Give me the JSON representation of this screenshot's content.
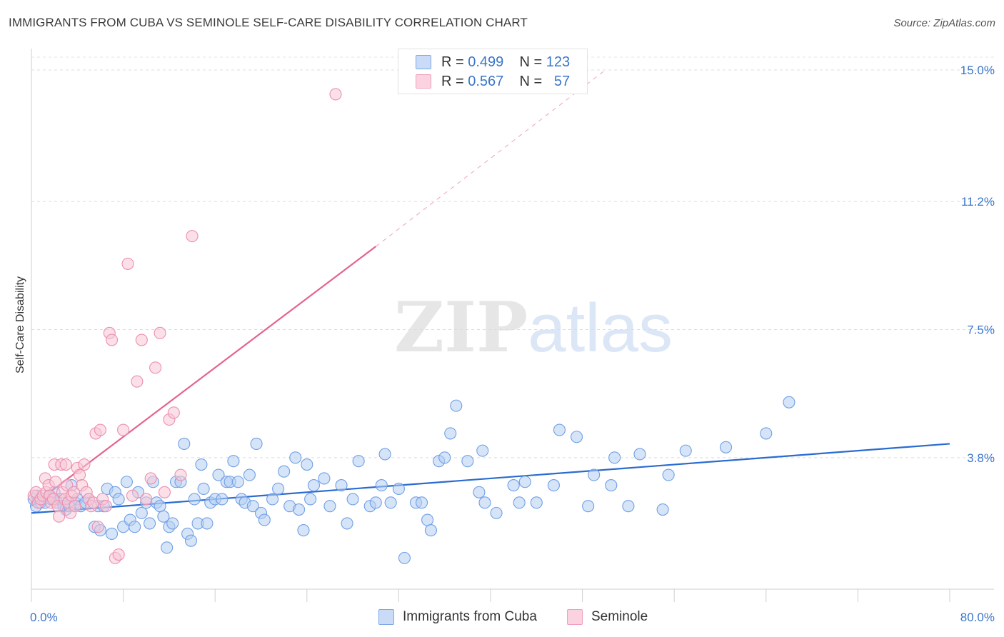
{
  "title": "IMMIGRANTS FROM CUBA VS SEMINOLE SELF-CARE DISABILITY CORRELATION CHART",
  "source": "Source: ZipAtlas.com",
  "watermark": {
    "zip": "ZIP",
    "atlas": "atlas"
  },
  "legend": {
    "rows": [
      {
        "r_label": "R =",
        "r_value": "0.499",
        "n_label": "N =",
        "n_value": "123",
        "color": "#9bbcf0"
      },
      {
        "r_label": "R =",
        "r_value": "0.567",
        "n_label": "N =",
        "n_value": "57",
        "color": "#f5b3c8"
      }
    ]
  },
  "bottom_legend": [
    {
      "label": "Immigrants from Cuba",
      "color": "#9bbcf0"
    },
    {
      "label": "Seminole",
      "color": "#f5b3c8"
    }
  ],
  "chart_data": {
    "type": "scatter",
    "title": "IMMIGRANTS FROM CUBA VS SEMINOLE SELF-CARE DISABILITY CORRELATION CHART",
    "xlabel": "",
    "ylabel": "Self-Care Disability",
    "xlim": [
      0,
      80
    ],
    "ylim": [
      0,
      15.0
    ],
    "x_tick_labels": [
      "0.0%",
      "80.0%"
    ],
    "y_ticks": [
      3.8,
      7.5,
      11.2,
      15.0
    ],
    "y_tick_labels": [
      "3.8%",
      "7.5%",
      "11.2%",
      "15.0%"
    ],
    "grid": "horizontal dashed",
    "legend_position": "top-center",
    "series": [
      {
        "name": "Immigrants from Cuba",
        "color": "#6f9fe6",
        "fill": "#b4cdf2",
        "trend": {
          "x": [
            0,
            80
          ],
          "y": [
            2.2,
            4.2
          ],
          "color": "#2a6bd0"
        },
        "points": [
          [
            0.2,
            2.6
          ],
          [
            0.4,
            2.4
          ],
          [
            0.5,
            2.7
          ],
          [
            0.8,
            2.5
          ],
          [
            1.0,
            2.6
          ],
          [
            1.2,
            2.5
          ],
          [
            1.5,
            2.7
          ],
          [
            1.7,
            2.6
          ],
          [
            2.0,
            2.8
          ],
          [
            2.2,
            2.5
          ],
          [
            2.5,
            2.6
          ],
          [
            2.8,
            2.4
          ],
          [
            3.0,
            2.3
          ],
          [
            3.3,
            2.4
          ],
          [
            3.5,
            3.0
          ],
          [
            3.8,
            2.5
          ],
          [
            4.0,
            2.6
          ],
          [
            4.3,
            2.4
          ],
          [
            4.7,
            2.5
          ],
          [
            5.0,
            2.6
          ],
          [
            5.5,
            1.8
          ],
          [
            5.8,
            2.4
          ],
          [
            6.0,
            1.7
          ],
          [
            6.3,
            2.4
          ],
          [
            6.6,
            2.9
          ],
          [
            7.0,
            1.6
          ],
          [
            7.3,
            2.8
          ],
          [
            7.6,
            2.6
          ],
          [
            8.0,
            1.8
          ],
          [
            8.3,
            3.1
          ],
          [
            8.6,
            2.0
          ],
          [
            9.0,
            1.8
          ],
          [
            9.3,
            2.8
          ],
          [
            9.6,
            2.2
          ],
          [
            10.0,
            2.5
          ],
          [
            10.3,
            1.9
          ],
          [
            10.6,
            3.1
          ],
          [
            10.9,
            2.5
          ],
          [
            11.2,
            2.4
          ],
          [
            11.5,
            2.1
          ],
          [
            11.8,
            1.2
          ],
          [
            12.0,
            1.8
          ],
          [
            12.3,
            1.9
          ],
          [
            12.6,
            3.1
          ],
          [
            13.0,
            3.1
          ],
          [
            13.3,
            4.2
          ],
          [
            13.6,
            1.6
          ],
          [
            13.9,
            1.4
          ],
          [
            14.2,
            2.6
          ],
          [
            14.5,
            1.9
          ],
          [
            14.8,
            3.6
          ],
          [
            15.0,
            2.9
          ],
          [
            15.3,
            1.9
          ],
          [
            15.6,
            2.5
          ],
          [
            16.0,
            2.6
          ],
          [
            16.3,
            3.3
          ],
          [
            16.6,
            2.6
          ],
          [
            17.0,
            3.1
          ],
          [
            17.3,
            3.1
          ],
          [
            17.6,
            3.7
          ],
          [
            18.0,
            3.1
          ],
          [
            18.3,
            2.6
          ],
          [
            18.6,
            2.5
          ],
          [
            19.0,
            3.3
          ],
          [
            19.3,
            2.4
          ],
          [
            19.6,
            4.2
          ],
          [
            20.0,
            2.2
          ],
          [
            20.3,
            2.0
          ],
          [
            21.0,
            2.6
          ],
          [
            21.5,
            2.9
          ],
          [
            22.0,
            3.4
          ],
          [
            22.5,
            2.4
          ],
          [
            23.0,
            3.8
          ],
          [
            23.3,
            2.3
          ],
          [
            23.7,
            1.7
          ],
          [
            24.0,
            3.6
          ],
          [
            24.3,
            2.6
          ],
          [
            24.6,
            3.0
          ],
          [
            25.5,
            3.2
          ],
          [
            26.0,
            2.4
          ],
          [
            27.0,
            3.0
          ],
          [
            27.5,
            1.9
          ],
          [
            28.0,
            2.6
          ],
          [
            28.5,
            3.7
          ],
          [
            29.5,
            2.4
          ],
          [
            30.0,
            2.5
          ],
          [
            30.5,
            3.0
          ],
          [
            30.8,
            3.9
          ],
          [
            31.3,
            2.5
          ],
          [
            32.0,
            2.9
          ],
          [
            32.5,
            0.9
          ],
          [
            33.5,
            2.5
          ],
          [
            34.0,
            2.5
          ],
          [
            34.5,
            2.0
          ],
          [
            34.8,
            1.7
          ],
          [
            35.5,
            3.7
          ],
          [
            36.0,
            3.8
          ],
          [
            36.5,
            4.5
          ],
          [
            37.0,
            5.3
          ],
          [
            38.0,
            3.7
          ],
          [
            39.0,
            2.8
          ],
          [
            39.3,
            4.0
          ],
          [
            39.5,
            2.5
          ],
          [
            40.5,
            2.2
          ],
          [
            42.0,
            3.0
          ],
          [
            42.5,
            2.5
          ],
          [
            43.0,
            3.1
          ],
          [
            44.0,
            2.5
          ],
          [
            45.5,
            3.0
          ],
          [
            46.0,
            4.6
          ],
          [
            47.5,
            4.4
          ],
          [
            48.5,
            2.4
          ],
          [
            49.0,
            3.3
          ],
          [
            50.5,
            3.0
          ],
          [
            50.8,
            3.8
          ],
          [
            52.0,
            2.4
          ],
          [
            53.0,
            3.9
          ],
          [
            55.0,
            2.3
          ],
          [
            55.5,
            3.3
          ],
          [
            57.0,
            4.0
          ],
          [
            60.5,
            4.1
          ],
          [
            64.0,
            4.5
          ],
          [
            66.0,
            5.4
          ]
        ]
      },
      {
        "name": "Seminole",
        "color": "#ec8fae",
        "fill": "#f8c6d6",
        "trend": {
          "x": [
            0,
            30
          ],
          "y": [
            2.4,
            9.9
          ],
          "color": "#e46390",
          "dashed_extension_to": [
            50,
            15.0
          ]
        },
        "points": [
          [
            0.2,
            2.7
          ],
          [
            0.4,
            2.8
          ],
          [
            0.6,
            2.5
          ],
          [
            0.8,
            2.6
          ],
          [
            1.0,
            2.7
          ],
          [
            1.2,
            3.2
          ],
          [
            1.3,
            2.8
          ],
          [
            1.5,
            3.0
          ],
          [
            1.6,
            2.7
          ],
          [
            1.7,
            2.5
          ],
          [
            1.9,
            2.6
          ],
          [
            2.0,
            3.6
          ],
          [
            2.1,
            3.1
          ],
          [
            2.3,
            2.4
          ],
          [
            2.4,
            2.1
          ],
          [
            2.6,
            3.6
          ],
          [
            2.7,
            2.8
          ],
          [
            2.9,
            2.6
          ],
          [
            3.0,
            3.6
          ],
          [
            3.1,
            3.0
          ],
          [
            3.2,
            2.5
          ],
          [
            3.4,
            2.2
          ],
          [
            3.5,
            2.7
          ],
          [
            3.7,
            2.8
          ],
          [
            3.8,
            2.4
          ],
          [
            4.0,
            3.5
          ],
          [
            4.2,
            3.3
          ],
          [
            4.4,
            3.0
          ],
          [
            4.6,
            3.6
          ],
          [
            4.8,
            2.8
          ],
          [
            5.0,
            2.6
          ],
          [
            5.2,
            2.4
          ],
          [
            5.4,
            2.5
          ],
          [
            5.6,
            4.5
          ],
          [
            5.8,
            1.8
          ],
          [
            6.0,
            4.6
          ],
          [
            6.2,
            2.6
          ],
          [
            6.5,
            2.4
          ],
          [
            6.8,
            7.4
          ],
          [
            7.0,
            7.2
          ],
          [
            7.3,
            0.9
          ],
          [
            7.6,
            1.0
          ],
          [
            8.0,
            4.6
          ],
          [
            8.4,
            9.4
          ],
          [
            8.8,
            2.7
          ],
          [
            9.2,
            6.0
          ],
          [
            9.6,
            7.2
          ],
          [
            10.0,
            2.6
          ],
          [
            10.4,
            3.2
          ],
          [
            10.8,
            6.4
          ],
          [
            11.2,
            7.4
          ],
          [
            11.6,
            2.8
          ],
          [
            12.0,
            4.9
          ],
          [
            12.4,
            5.1
          ],
          [
            13.0,
            3.3
          ],
          [
            14.0,
            10.2
          ],
          [
            26.5,
            14.3
          ]
        ]
      }
    ]
  }
}
